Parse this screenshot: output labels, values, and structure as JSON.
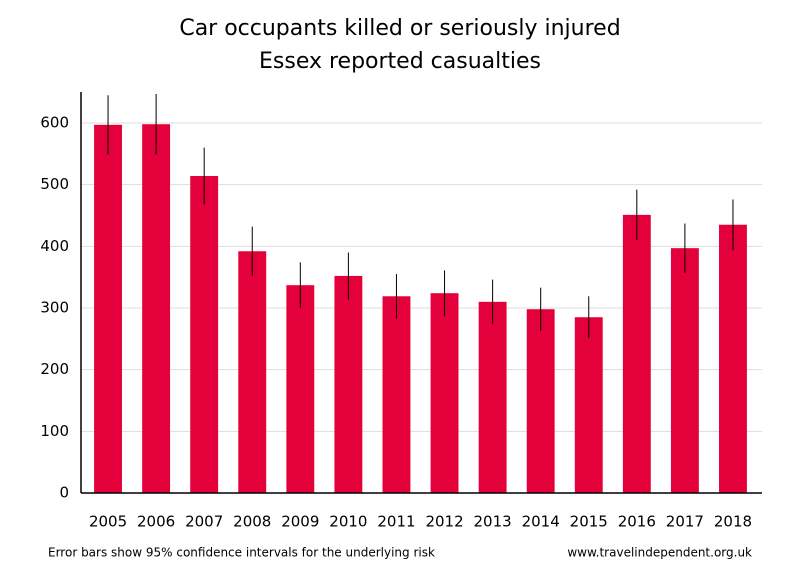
{
  "chart_data": {
    "type": "bar",
    "title": "Car occupants killed or seriously injured",
    "subtitle": "Essex reported casualties",
    "categories": [
      "2005",
      "2006",
      "2007",
      "2008",
      "2009",
      "2010",
      "2011",
      "2012",
      "2013",
      "2014",
      "2015",
      "2016",
      "2017",
      "2018"
    ],
    "values": [
      597,
      598,
      514,
      392,
      337,
      352,
      319,
      324,
      310,
      298,
      285,
      451,
      397,
      435
    ],
    "errors": [
      48,
      49,
      46,
      40,
      37,
      38,
      36,
      37,
      36,
      35,
      34,
      41,
      40,
      41
    ],
    "color": "#e4003a",
    "ylim": [
      0,
      650
    ],
    "yticks": [
      0,
      100,
      200,
      300,
      400,
      500,
      600
    ],
    "grid": true,
    "footnote": "Error bars show 95% confidence intervals for the underlying risk",
    "source": "www.travelindependent.org.uk"
  }
}
